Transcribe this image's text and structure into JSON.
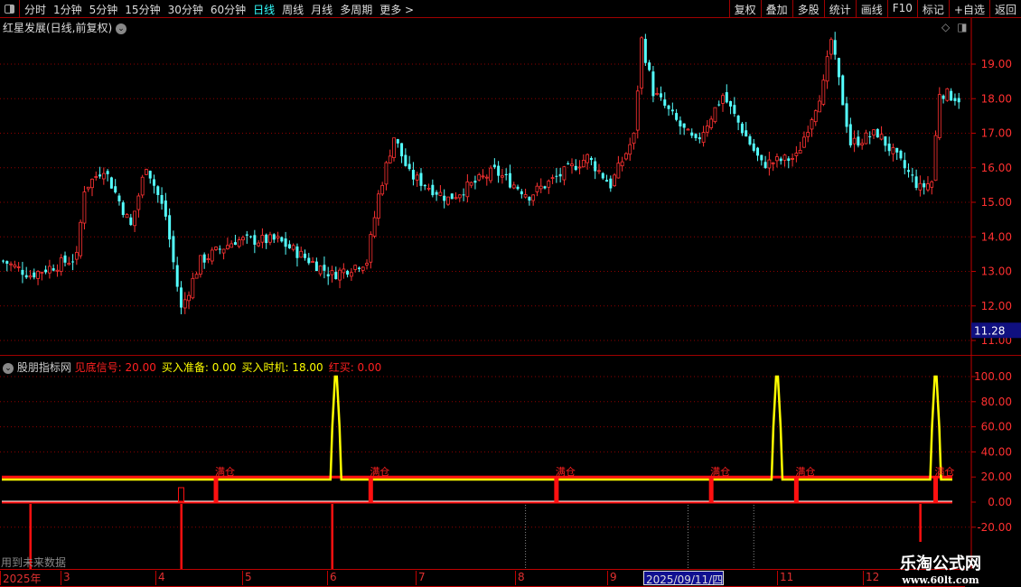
{
  "toolbar": {
    "periods": [
      "分时",
      "1分钟",
      "5分钟",
      "15分钟",
      "30分钟",
      "60分钟",
      "日线",
      "周线",
      "月线",
      "多周期",
      "更多 >"
    ],
    "active": "日线",
    "tools": [
      "复权",
      "叠加",
      "多股",
      "统计",
      "画线",
      "F10",
      "标记",
      "+自选",
      "返回"
    ]
  },
  "main": {
    "title": "红星发展(日线,前复权)",
    "y_ticks": [
      "19.00",
      "18.00",
      "17.00",
      "16.00",
      "15.00",
      "14.00",
      "13.00",
      "12.00",
      "11.00"
    ],
    "current_price_box": "11.28",
    "price_path": [
      [
        0,
        13.3
      ],
      [
        7,
        12.9
      ],
      [
        19,
        13.4
      ],
      [
        21,
        15.4
      ],
      [
        26,
        16.0
      ],
      [
        33,
        14.3
      ],
      [
        37,
        16.1
      ],
      [
        42,
        14.6
      ],
      [
        46,
        11.9
      ],
      [
        51,
        13.3
      ],
      [
        60,
        13.9
      ],
      [
        71,
        13.9
      ],
      [
        85,
        12.9
      ],
      [
        94,
        13.3
      ],
      [
        97,
        15.2
      ],
      [
        101,
        16.9
      ],
      [
        105,
        15.8
      ],
      [
        115,
        15.1
      ],
      [
        127,
        15.9
      ],
      [
        136,
        15.2
      ],
      [
        151,
        16.3
      ],
      [
        157,
        15.5
      ],
      [
        163,
        16.9
      ],
      [
        165,
        19.7
      ],
      [
        168,
        18.2
      ],
      [
        175,
        17.2
      ],
      [
        179,
        16.7
      ],
      [
        186,
        18.1
      ],
      [
        196,
        16.1
      ],
      [
        205,
        16.3
      ],
      [
        212,
        18.4
      ],
      [
        214,
        19.7
      ],
      [
        219,
        16.7
      ],
      [
        226,
        17.0
      ],
      [
        237,
        15.4
      ],
      [
        240,
        15.6
      ],
      [
        242,
        18.2
      ],
      [
        247,
        18.0
      ]
    ],
    "colors": {
      "up": "#ff3232",
      "down": "#54ffff",
      "grid": "#a00000"
    }
  },
  "indicator": {
    "name": "股朋指标网",
    "legend": [
      {
        "label": "见底信号: 20.00",
        "color": "#ff2020"
      },
      {
        "label": "买入准备: 0.00",
        "color": "#ffff00"
      },
      {
        "label": "买入时机: 18.00",
        "color": "#ffff00"
      },
      {
        "label": "红买: 0.00",
        "color": "#ff2020"
      }
    ],
    "y_ticks": [
      "100.00",
      "80.00",
      "60.00",
      "40.00",
      "20.00",
      "0.00",
      "-20.00"
    ],
    "buy_prep_spikes": [
      86,
      200,
      241
    ],
    "full_position_label": "满仓",
    "full_position_bars": [
      55,
      95,
      143,
      183,
      205,
      241
    ],
    "red_buy_bars": [
      7,
      46,
      85,
      237
    ],
    "future_markers": [
      135,
      177,
      194
    ],
    "future_data_text": "用到未来数据"
  },
  "dates": [
    {
      "label": "2025年",
      "hl": false
    },
    {
      "label": "3",
      "hl": false
    },
    {
      "label": "4",
      "hl": false
    },
    {
      "label": "5",
      "hl": false
    },
    {
      "label": "6",
      "hl": false
    },
    {
      "label": "7",
      "hl": false
    },
    {
      "label": "8",
      "hl": false
    },
    {
      "label": "9",
      "hl": false
    },
    {
      "label": "2025/09/11/四",
      "hl": true
    },
    {
      "label": "11",
      "hl": false
    },
    {
      "label": "12",
      "hl": false
    }
  ],
  "watermark": {
    "name": "乐淘公式网",
    "url": "www.60lt.com"
  }
}
